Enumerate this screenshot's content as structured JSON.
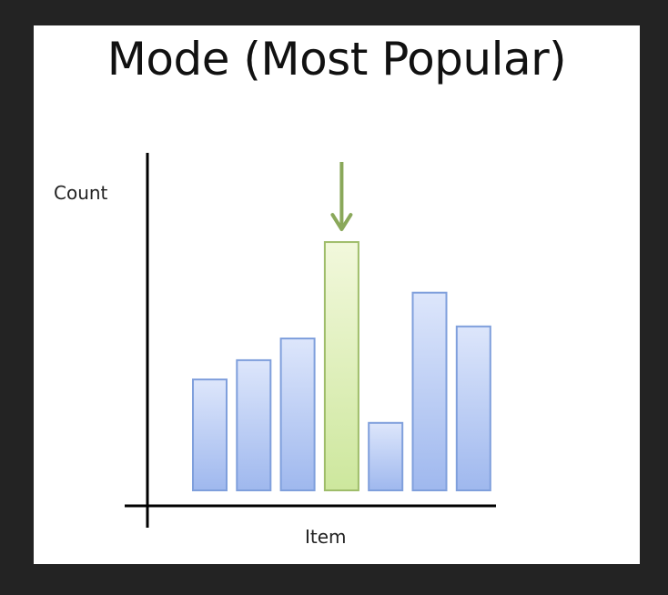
{
  "chart_data": {
    "type": "bar",
    "title": "Mode (Most Popular)",
    "xlabel": "Item",
    "ylabel": "Count",
    "values": [
      4.6,
      5.4,
      6.3,
      10.3,
      2.8,
      8.2,
      6.8
    ],
    "highlight_index": 3,
    "ylim": [
      0,
      12
    ],
    "grid": false,
    "annotation": "down-arrow-above-tallest-bar",
    "colors": {
      "bar_fill_top": "#dde6fb",
      "bar_fill_bottom": "#9fb8ee",
      "bar_stroke": "#7f9fdc",
      "highlight_fill_top": "#f2f8dc",
      "highlight_fill_bottom": "#cde79d",
      "highlight_stroke": "#9fbd6a",
      "arrow": "#8aa85a",
      "axis": "#000000"
    }
  }
}
